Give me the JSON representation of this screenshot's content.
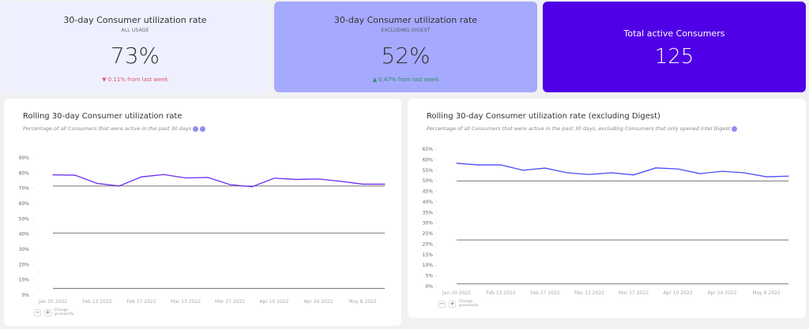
{
  "cards": [
    {
      "title": "30-day Consumer utilization rate",
      "subtitle": "ALL USAGE",
      "value": "73%",
      "delta": "▼ 0.11% from last week",
      "delta_color": "#e0566b",
      "bg": "#eef0ff"
    },
    {
      "title": "30-day Consumer utilization rate",
      "subtitle": "EXCLUDING DIGEST",
      "value": "52%",
      "delta": "▲ 0.47% from last week",
      "delta_color": "#3aa66a",
      "bg": "#a6aaff"
    },
    {
      "title": "Total active Consumers",
      "value": "125",
      "bg": "#5000e6"
    }
  ],
  "granularity": {
    "minus": "−",
    "plus": "+",
    "label": "Change granularity"
  },
  "chart_data": [
    {
      "type": "line",
      "title": "Rolling 30-day Consumer utilization rate",
      "subtitle": "Percentage of all Consumers that were active in the past 30 days",
      "icons": [
        "info-icon",
        "lightbulb-icon"
      ],
      "x": [
        "Jan 30 2022",
        "Feb 6 2022",
        "Feb 13 2022",
        "Feb 20 2022",
        "Feb 27 2022",
        "Mar 6 2022",
        "Mar 13 2022",
        "Mar 20 2022",
        "Mar 27 2022",
        "Apr 3 2022",
        "Apr 10 2022",
        "Apr 17 2022",
        "Apr 24 2022",
        "May 1 2022",
        "May 8 2022",
        "May 15 2022"
      ],
      "xticks": [
        "Jan 30 2022",
        "Feb 13 2022",
        "Feb 27 2022",
        "Mar 13 2022",
        "Mar 27 2022",
        "Apr 10 2022",
        "Apr 24 2022",
        "May 8 2022"
      ],
      "yticks": [
        "0%",
        "10%",
        "20%",
        "30%",
        "40%",
        "50%",
        "60%",
        "70%",
        "80%",
        "90%"
      ],
      "ylim": [
        0,
        90
      ],
      "ystep": 10,
      "series": [
        {
          "values": [
            78.8,
            78.6,
            73.2,
            71.5,
            77.5,
            79,
            76.8,
            77.1,
            72.4,
            71,
            76.6,
            75.8,
            76.1,
            74.6,
            72.7,
            72.7
          ],
          "color": "#6a2cf0"
        }
      ],
      "reference_lines": [
        71.5,
        40.7,
        4.4
      ],
      "reference_color": "#777777"
    },
    {
      "type": "line",
      "title": "Rolling 30-day Consumer utilization rate (excluding Digest)",
      "subtitle": "Percentage of all Consumers that were active in the past 30 days, excluding Consumers that only opened Intel Digest",
      "icons": [
        "info-icon"
      ],
      "x": [
        "Jan 30 2022",
        "Feb 6 2022",
        "Feb 13 2022",
        "Feb 20 2022",
        "Feb 27 2022",
        "Mar 6 2022",
        "Mar 13 2022",
        "Mar 20 2022",
        "Mar 27 2022",
        "Apr 3 2022",
        "Apr 10 2022",
        "Apr 17 2022",
        "Apr 24 2022",
        "May 1 2022",
        "May 8 2022",
        "May 15 2022"
      ],
      "xticks": [
        "Jan 30 2022",
        "Feb 13 2022",
        "Feb 27 2022",
        "Mar 13 2022",
        "Mar 27 2022",
        "Apr 10 2022",
        "Apr 24 2022",
        "May 8 2022"
      ],
      "yticks": [
        "0%",
        "5%",
        "10%",
        "15%",
        "20%",
        "25%",
        "30%",
        "35%",
        "40%",
        "45%",
        "50%",
        "55%",
        "60%",
        "65%"
      ],
      "ylim": [
        0,
        65
      ],
      "ystep": 5,
      "series": [
        {
          "values": [
            58.3,
            57.5,
            57.5,
            55.0,
            56.0,
            53.8,
            53.0,
            53.8,
            52.8,
            56.1,
            55.6,
            53.4,
            54.5,
            53.8,
            51.9,
            52.2
          ],
          "color": "#4b4bf5"
        }
      ],
      "reference_lines": [
        49.9,
        22,
        1.2
      ],
      "reference_color": "#777777"
    }
  ]
}
